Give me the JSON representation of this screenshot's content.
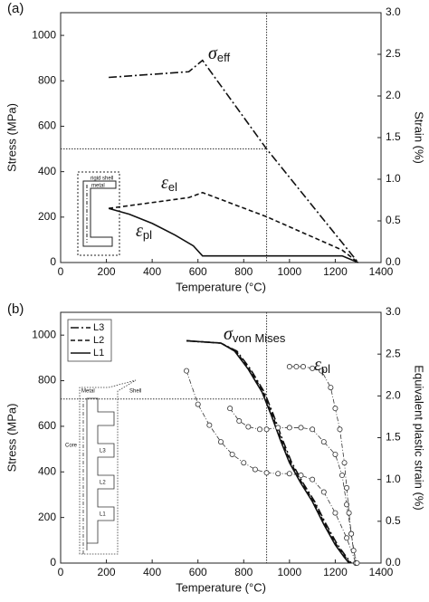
{
  "chart_data": [
    {
      "type": "line",
      "label": "(a)",
      "xlabel": "Temperature (°C)",
      "ylabel": "Stress (MPa)",
      "y2label": "Strain (%)",
      "xlim": [
        0,
        1400
      ],
      "xticks": [
        0,
        200,
        400,
        600,
        800,
        1000,
        1200,
        1400
      ],
      "ylim": [
        0,
        1100
      ],
      "yticks": [
        0,
        200,
        400,
        600,
        800,
        1000
      ],
      "y2lim": [
        0,
        3
      ],
      "y2ticks": [
        {
          "value": 0,
          "label": "0.0"
        },
        0.5,
        {
          "value": 1,
          "label": "1.0"
        },
        1.5,
        {
          "value": 2,
          "label": "2.0"
        },
        2.5,
        {
          "value": 3,
          "label": "3.0"
        }
      ],
      "ref_lines": {
        "x": 900,
        "y": 500
      },
      "series": [
        {
          "style": "dash-dot",
          "color": "#111111",
          "x": [
            210,
            560,
            620,
            900,
            1300
          ],
          "values": [
            815,
            840,
            890,
            500,
            0
          ]
        },
        {
          "style": "dashed",
          "color": "#111111",
          "axis": "y2",
          "x": [
            210,
            400,
            560,
            620,
            900,
            1230,
            1300
          ],
          "values": [
            0.65,
            0.72,
            0.78,
            0.84,
            0.55,
            0.15,
            0
          ]
        },
        {
          "style": "solid",
          "color": "#111111",
          "axis": "y2",
          "x": [
            210,
            300,
            400,
            500,
            580,
            620,
            1230,
            1300
          ],
          "values": [
            0.65,
            0.58,
            0.47,
            0.33,
            0.2,
            0.08,
            0.08,
            0
          ]
        }
      ],
      "annotations": [
        {
          "text": "σ",
          "sub": "eff"
        },
        {
          "text": "ε",
          "sub": "el"
        },
        {
          "text": "ε",
          "sub": "pl"
        }
      ],
      "inset_labels": [
        "rigid shell",
        "metal"
      ]
    },
    {
      "type": "line",
      "label": "(b)",
      "xlabel": "Temperature (°C)",
      "ylabel": "Stress (MPa)",
      "y2label": "Equivalent plastic strain (%)",
      "xlim": [
        0,
        1400
      ],
      "xticks": [
        0,
        200,
        400,
        600,
        800,
        1000,
        1200,
        1400
      ],
      "ylim": [
        0,
        1100
      ],
      "yticks": [
        0,
        200,
        400,
        600,
        800,
        1000
      ],
      "y2lim": [
        0,
        3
      ],
      "y2ticks": [
        {
          "value": 0,
          "label": "0.0"
        },
        0.5,
        {
          "value": 1,
          "label": "1.0"
        },
        1.5,
        {
          "value": 2,
          "label": "2.0"
        },
        2.5,
        {
          "value": 3,
          "label": "3.0"
        }
      ],
      "ref_lines": {
        "x": 900,
        "y": 720
      },
      "legend": "upper left",
      "series": [
        {
          "name": "L3",
          "style": "dash-dot",
          "color": "#111111",
          "x": [
            550,
            700,
            770,
            830,
            890,
            930,
            970,
            1010,
            1060,
            1110,
            1160,
            1210,
            1250,
            1270
          ],
          "values": [
            975,
            965,
            930,
            850,
            750,
            650,
            540,
            440,
            350,
            270,
            170,
            80,
            25,
            0
          ]
        },
        {
          "name": "L2",
          "style": "dashed",
          "color": "#111111",
          "x": [
            550,
            700,
            765,
            825,
            885,
            925,
            965,
            1005,
            1055,
            1105,
            1155,
            1205,
            1245,
            1265
          ],
          "values": [
            975,
            965,
            930,
            850,
            750,
            650,
            540,
            440,
            350,
            270,
            170,
            80,
            25,
            0
          ]
        },
        {
          "name": "L1",
          "style": "solid",
          "color": "#111111",
          "x": [
            550,
            700,
            760,
            820,
            880,
            920,
            960,
            1000,
            1050,
            1100,
            1150,
            1200,
            1240,
            1260
          ],
          "values": [
            975,
            965,
            930,
            850,
            750,
            650,
            540,
            440,
            350,
            270,
            170,
            80,
            25,
            0
          ]
        },
        {
          "style": "thin-dash-dot",
          "marker": "circle",
          "color": "#333333",
          "axis": "y2",
          "x": [
            550,
            600,
            650,
            700,
            750,
            800,
            850,
            900,
            950,
            1000,
            1050,
            1100,
            1150,
            1200,
            1250,
            1290
          ],
          "values": [
            2.3,
            1.9,
            1.65,
            1.45,
            1.3,
            1.2,
            1.12,
            1.08,
            1.07,
            1.07,
            1.05,
            1.0,
            0.85,
            0.6,
            0.3,
            0
          ]
        },
        {
          "style": "thin-dash-dot",
          "marker": "circle",
          "color": "#333333",
          "axis": "y2",
          "x": [
            740,
            780,
            820,
            870,
            900,
            950,
            1000,
            1050,
            1100,
            1150,
            1200,
            1230,
            1250,
            1270,
            1290
          ],
          "values": [
            1.85,
            1.7,
            1.63,
            1.6,
            1.6,
            1.62,
            1.62,
            1.62,
            1.6,
            1.45,
            1.3,
            1.05,
            0.7,
            0.35,
            0
          ]
        },
        {
          "style": "thin-dash-dot",
          "marker": "circle",
          "color": "#333333",
          "axis": "y2",
          "x": [
            1000,
            1030,
            1060,
            1100,
            1140,
            1180,
            1200,
            1220,
            1240,
            1250,
            1260,
            1270,
            1280,
            1295
          ],
          "values": [
            2.35,
            2.35,
            2.35,
            2.33,
            2.3,
            2.1,
            1.85,
            1.6,
            1.2,
            0.9,
            0.6,
            0.35,
            0.15,
            0
          ]
        }
      ],
      "annotations": [
        {
          "text": "σ",
          "sub": "von Mises"
        },
        {
          "text": "ε",
          "sub": "pl"
        }
      ],
      "inset_labels": [
        "Metal",
        "Shell",
        "Core",
        "L3",
        "L2",
        "L1"
      ]
    }
  ]
}
